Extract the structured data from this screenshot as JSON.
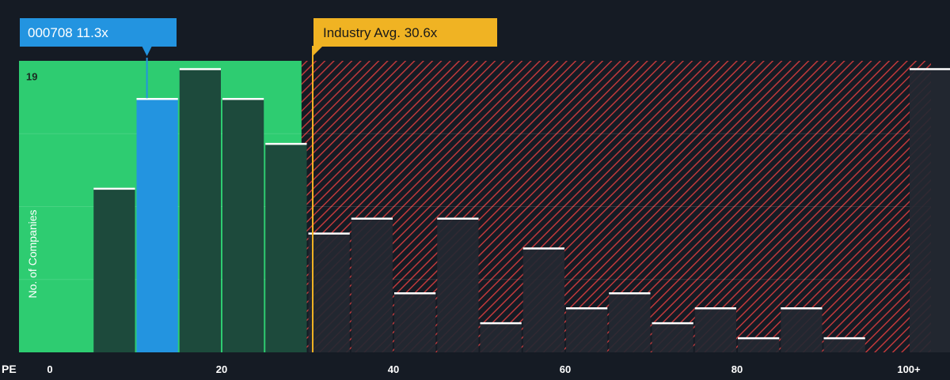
{
  "chart_data": {
    "type": "bar",
    "xlabel": "PE",
    "ylabel": "No. of Companies",
    "xlim": [
      0,
      102
    ],
    "ylim": [
      0,
      19.5
    ],
    "x_ticks": [
      {
        "value": 0,
        "label": "0"
      },
      {
        "value": 20,
        "label": "20"
      },
      {
        "value": 40,
        "label": "40"
      },
      {
        "value": 60,
        "label": "60"
      },
      {
        "value": 80,
        "label": "80"
      },
      {
        "value": 100,
        "label": "100+"
      }
    ],
    "y_max_label": "19",
    "bin_width": 5,
    "bins": [
      {
        "start": 5,
        "value": 11
      },
      {
        "start": 10,
        "value": 17
      },
      {
        "start": 15,
        "value": 19
      },
      {
        "start": 20,
        "value": 17
      },
      {
        "start": 25,
        "value": 14
      },
      {
        "start": 30,
        "value": 8
      },
      {
        "start": 35,
        "value": 9
      },
      {
        "start": 40,
        "value": 4
      },
      {
        "start": 45,
        "value": 9
      },
      {
        "start": 50,
        "value": 2
      },
      {
        "start": 55,
        "value": 7
      },
      {
        "start": 60,
        "value": 3
      },
      {
        "start": 65,
        "value": 4
      },
      {
        "start": 70,
        "value": 2
      },
      {
        "start": 75,
        "value": 3
      },
      {
        "start": 80,
        "value": 1
      },
      {
        "start": 85,
        "value": 3
      },
      {
        "start": 90,
        "value": 1
      },
      {
        "start": 100,
        "value": 19
      }
    ],
    "company": {
      "label": "000708 11.3x",
      "value": 11.3
    },
    "industry_avg": {
      "label": "Industry Avg. 30.6x",
      "value": 30.6
    },
    "fair_zone_end": 29.3,
    "colors": {
      "background": "#151b24",
      "fair_zone": "#2ecc71",
      "bar_in_fair": "#1d4a3c",
      "bar_overvalued": "#242832",
      "company_bar": "#2394e0",
      "hatch": "#c0393b",
      "industry_line": "#f0b323",
      "bar_top": "#ffffff"
    }
  }
}
